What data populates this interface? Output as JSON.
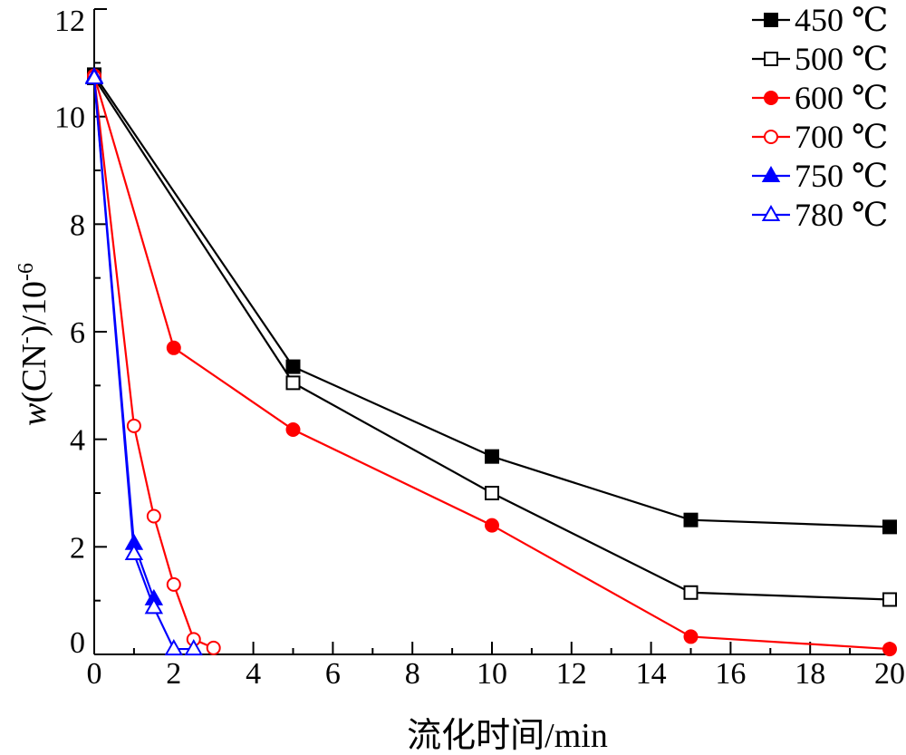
{
  "chart_data": {
    "type": "line",
    "xlabel": "流化时间/min",
    "ylabel": {
      "prefix": "w",
      "main": "(CN",
      "superscript": "-",
      "suffix": ")/10",
      "exponent": "-6"
    },
    "xlim": [
      0,
      20
    ],
    "ylim": [
      0,
      12
    ],
    "xticks": [
      0,
      2,
      4,
      6,
      8,
      10,
      12,
      14,
      16,
      18,
      20
    ],
    "yticks": [
      0,
      2,
      4,
      6,
      8,
      10,
      12
    ],
    "grid": false,
    "legend_position": "top-right",
    "series": [
      {
        "name": "450 ℃",
        "color": "#000000",
        "marker": "square",
        "filled": true,
        "x": [
          0,
          5,
          10,
          15,
          20
        ],
        "y": [
          10.78,
          5.35,
          3.68,
          2.5,
          2.37
        ]
      },
      {
        "name": "500 ℃",
        "color": "#000000",
        "marker": "square",
        "filled": false,
        "x": [
          0,
          5,
          10,
          15,
          20
        ],
        "y": [
          10.72,
          5.05,
          3.0,
          1.15,
          1.02
        ]
      },
      {
        "name": "600 ℃",
        "color": "#ff0000",
        "marker": "circle",
        "filled": true,
        "x": [
          0,
          2,
          5,
          10,
          15,
          20
        ],
        "y": [
          10.76,
          5.7,
          4.18,
          2.4,
          0.33,
          0.1
        ]
      },
      {
        "name": "700 ℃",
        "color": "#ff0000",
        "marker": "circle",
        "filled": false,
        "x": [
          0,
          1,
          1.5,
          2,
          2.5,
          3
        ],
        "y": [
          10.74,
          4.25,
          2.57,
          1.3,
          0.28,
          0.12
        ]
      },
      {
        "name": "750 ℃",
        "color": "#0000ff",
        "marker": "triangle",
        "filled": true,
        "x": [
          0,
          1,
          1.5
        ],
        "y": [
          10.74,
          2.06,
          1.03
        ]
      },
      {
        "name": "780 ℃",
        "color": "#0000ff",
        "marker": "triangle",
        "filled": false,
        "x": [
          0,
          1,
          1.5,
          2,
          2.5
        ],
        "y": [
          10.72,
          1.87,
          0.87,
          0.1,
          0.1
        ]
      }
    ]
  }
}
